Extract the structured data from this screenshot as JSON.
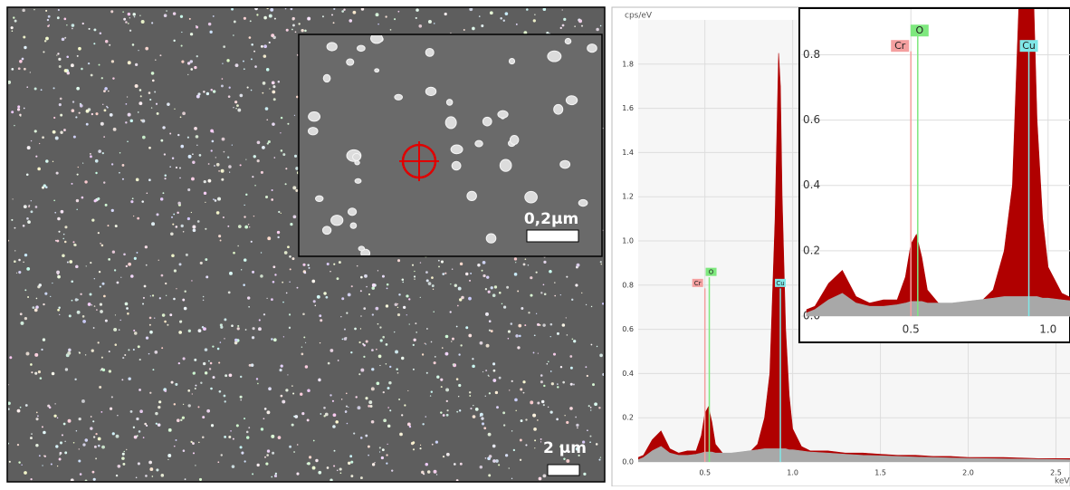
{
  "sem": {
    "scale_main": "2 µm",
    "scale_inset": "0,2µm"
  },
  "chart_data": [
    {
      "type": "area",
      "y_label": "cps/eV",
      "x_label": "keV",
      "xlim": [
        0.12,
        2.58
      ],
      "ylim": [
        0,
        2.0
      ],
      "xticks": [
        0.5,
        {
          "value": 1.0,
          "label": "1.0"
        },
        1.5,
        {
          "value": 2.0,
          "label": "2.0"
        },
        2.5
      ],
      "yticks": [
        {
          "value": 0,
          "label": "0.0"
        },
        0.2,
        0.4,
        0.6,
        0.8,
        {
          "value": 1.0,
          "label": "1.0"
        },
        1.2,
        1.4,
        1.6,
        1.8
      ],
      "grid": true,
      "x": [
        0.12,
        0.15,
        0.2,
        0.25,
        0.3,
        0.35,
        0.4,
        0.45,
        0.48,
        0.5,
        0.52,
        0.54,
        0.56,
        0.6,
        0.65,
        0.7,
        0.75,
        0.8,
        0.84,
        0.87,
        0.9,
        0.92,
        0.93,
        0.94,
        0.96,
        0.98,
        1.0,
        1.05,
        1.1,
        1.2,
        1.3,
        1.4,
        1.5,
        1.6,
        1.7,
        1.8,
        1.9,
        2.0,
        2.2,
        2.4,
        2.6
      ],
      "series": [
        {
          "color": "#b00000",
          "values": [
            0.02,
            0.03,
            0.1,
            0.14,
            0.06,
            0.04,
            0.05,
            0.05,
            0.12,
            0.22,
            0.25,
            0.18,
            0.08,
            0.04,
            0.03,
            0.03,
            0.04,
            0.08,
            0.2,
            0.4,
            1.1,
            1.85,
            1.7,
            1.2,
            0.6,
            0.3,
            0.15,
            0.07,
            0.05,
            0.05,
            0.04,
            0.04,
            0.035,
            0.03,
            0.03,
            0.025,
            0.025,
            0.02,
            0.02,
            0.015,
            0.015
          ]
        },
        {
          "color": "#a8a8a8",
          "values": [
            0.01,
            0.02,
            0.05,
            0.07,
            0.04,
            0.03,
            0.03,
            0.035,
            0.04,
            0.045,
            0.045,
            0.045,
            0.04,
            0.04,
            0.04,
            0.045,
            0.05,
            0.055,
            0.06,
            0.06,
            0.06,
            0.06,
            0.06,
            0.06,
            0.06,
            0.055,
            0.055,
            0.05,
            0.045,
            0.04,
            0.035,
            0.03,
            0.028,
            0.025,
            0.022,
            0.02,
            0.018,
            0.016,
            0.014,
            0.012,
            0.01
          ]
        }
      ],
      "element_lines": [
        {
          "name": "O",
          "x": 0.525,
          "color": "#7ee87e"
        },
        {
          "name": "Cr",
          "x": 0.5,
          "color": "#f4a0a0"
        },
        {
          "name": "Cu",
          "x": 0.93,
          "color": "#80e8e8"
        }
      ]
    },
    {
      "type": "area",
      "xlim": [
        0.1,
        1.08
      ],
      "ylim": [
        0,
        0.94
      ],
      "xticks": [
        0.5,
        {
          "value": 1.0,
          "label": "1.0"
        }
      ],
      "yticks": [
        {
          "value": 0,
          "label": "0.0"
        },
        0.2,
        0.4,
        0.6,
        0.8
      ],
      "grid": true
    }
  ]
}
